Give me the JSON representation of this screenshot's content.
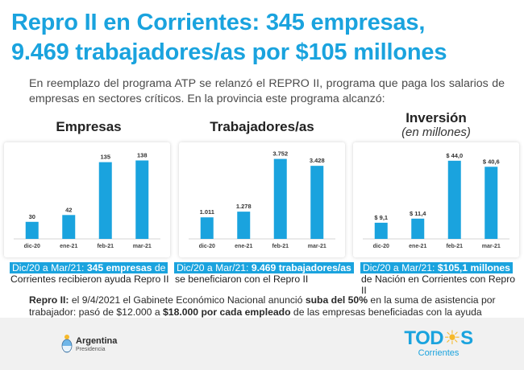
{
  "header": {
    "title_line1": "Repro II en Corrientes: 345 empresas,",
    "title_line2": "9.469 trabajadores/as por $105 millones",
    "intro": "En reemplazo del programa ATP se relanzó el REPRO II, programa que paga los salarios de empresas en sectores críticos. En la provincia este programa alcanzó:"
  },
  "colors": {
    "accent": "#1aa3de",
    "sun": "#f6b92b",
    "footer_bg": "#f1f1f1"
  },
  "chart_data": [
    {
      "type": "bar",
      "title": "Empresas",
      "categories": [
        "dic-20",
        "ene-21",
        "feb-21",
        "mar-21"
      ],
      "values": [
        30,
        42,
        135,
        138
      ],
      "value_labels": [
        "30",
        "42",
        "135",
        "138"
      ],
      "ylim": [
        0,
        150
      ],
      "grid": false
    },
    {
      "type": "bar",
      "title": "Trabajadores/as",
      "categories": [
        "dic-20",
        "ene-21",
        "feb-21",
        "mar-21"
      ],
      "values": [
        1011,
        1278,
        3752,
        3428
      ],
      "value_labels": [
        "1.011",
        "1.278",
        "3.752",
        "3.428"
      ],
      "ylim": [
        0,
        4000
      ],
      "grid": false
    },
    {
      "type": "bar",
      "title": "Inversión",
      "subtitle": "(en millones)",
      "categories": [
        "dic-20",
        "ene-21",
        "feb-21",
        "mar-21"
      ],
      "values": [
        9.1,
        11.4,
        44.0,
        40.6
      ],
      "value_labels": [
        "$ 9,1",
        "$ 11,4",
        "$ 44,0",
        "$ 40,6"
      ],
      "ylim": [
        0,
        48
      ],
      "grid": false
    }
  ],
  "summaries": [
    {
      "highlight_prefix": "Dic/20 a Mar/21: ",
      "highlight_bold": "345 empresas",
      "highlight_suffix": " de",
      "rest": "Corrientes recibieron ayuda Repro II"
    },
    {
      "highlight_prefix": "Dic/20 a Mar/21: ",
      "highlight_bold": "9.469 trabajadores/as",
      "highlight_suffix": "",
      "rest": "se beneficiaron con el Repro II"
    },
    {
      "highlight_prefix": "Dic/20 a Mar/21: ",
      "highlight_bold": "$105,1 millones",
      "highlight_suffix": "",
      "rest": "de Nación en Corrientes con Repro II"
    }
  ],
  "note": {
    "label": "Repro II:",
    "text1": " el 9/4/2021 el Gabinete Económico Nacional anunció ",
    "bold1": "suba del 50%",
    "text2": " en la suma de asistencia por trabajador: pasó de $12.000 a ",
    "bold2": "$18.000 por cada empleado",
    "text3": " de las empresas beneficiadas con la ayuda económica de Nación."
  },
  "footer": {
    "argentina_name": "Argentina",
    "argentina_sub": "Presidencia",
    "todos_before_sun": "TOD",
    "todos_sun": "☀",
    "todos_after_sun": "S",
    "todos_sub": "Corrientes"
  }
}
